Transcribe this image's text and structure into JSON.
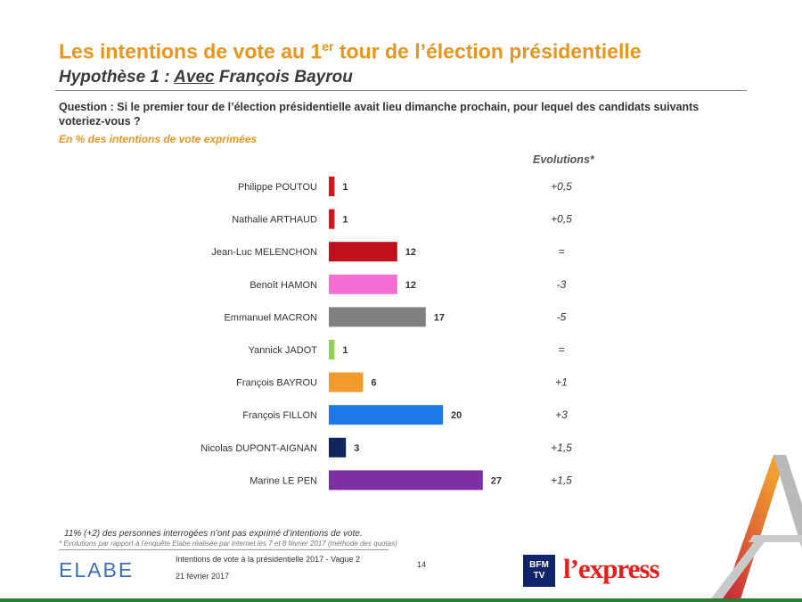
{
  "header": {
    "title_pre": "Les intentions de vote au 1",
    "title_sup": "er",
    "title_post": " tour de l’élection présidentielle",
    "subtitle_pre": "Hypothèse 1 : ",
    "subtitle_underlined": "Avec",
    "subtitle_post": " François Bayrou",
    "question": "Question : Si le premier tour de l’élection présidentielle avait lieu dimanche prochain, pour lequel des candidats suivants voteriez-vous ?",
    "unit_note": "En %  des intentions de vote exprimées",
    "evolutions_header": "Evolutions*"
  },
  "chart_data": {
    "type": "bar",
    "orientation": "horizontal",
    "categories": [
      "Philippe POUTOU",
      "Nathalie ARTHAUD",
      "Jean-Luc MELENCHON",
      "Benoît HAMON",
      "Emmanuel MACRON",
      "Yannick JADOT",
      "François BAYROU",
      "François FILLON",
      "Nicolas DUPONT-AIGNAN",
      "Marine LE PEN"
    ],
    "values": [
      1,
      1,
      12,
      12,
      17,
      1,
      6,
      20,
      3,
      27
    ],
    "value_labels": [
      "1",
      "1",
      "12",
      "12",
      "17",
      "1",
      "6",
      "20",
      "3",
      "27"
    ],
    "evolutions": [
      "+0,5",
      "+0,5",
      "=",
      "-3",
      "-5",
      "=",
      "+1",
      "+3",
      "+1,5",
      "+1,5"
    ],
    "colors": [
      "#d7131c",
      "#d7131c",
      "#c0101c",
      "#f46dd2",
      "#808080",
      "#8fd150",
      "#f39a2c",
      "#1e78ea",
      "#10245e",
      "#7d2fa3"
    ],
    "title": "Les intentions de vote au 1er tour de l’élection présidentielle",
    "xlabel": "",
    "ylabel": "",
    "xlim": [
      0,
      27
    ]
  },
  "footer": {
    "note": "11% (+2) des personnes interrogées n’ont pas exprimé d’intentions de vote.",
    "evolution_note": "* Evolutions par rapport à l’enquête Elabe réalisée par internet les 7 et 8 février 2017 (méthode des quotas)",
    "logo_elabe": "ELABE",
    "source": "Intentions de vote à la présidentielle 2017 - Vague 2",
    "date": "21 février 2017",
    "page": "14",
    "logo_bfm": "BFM TV",
    "logo_express": "l’express"
  },
  "colors": {
    "accent": "#e8951e"
  }
}
